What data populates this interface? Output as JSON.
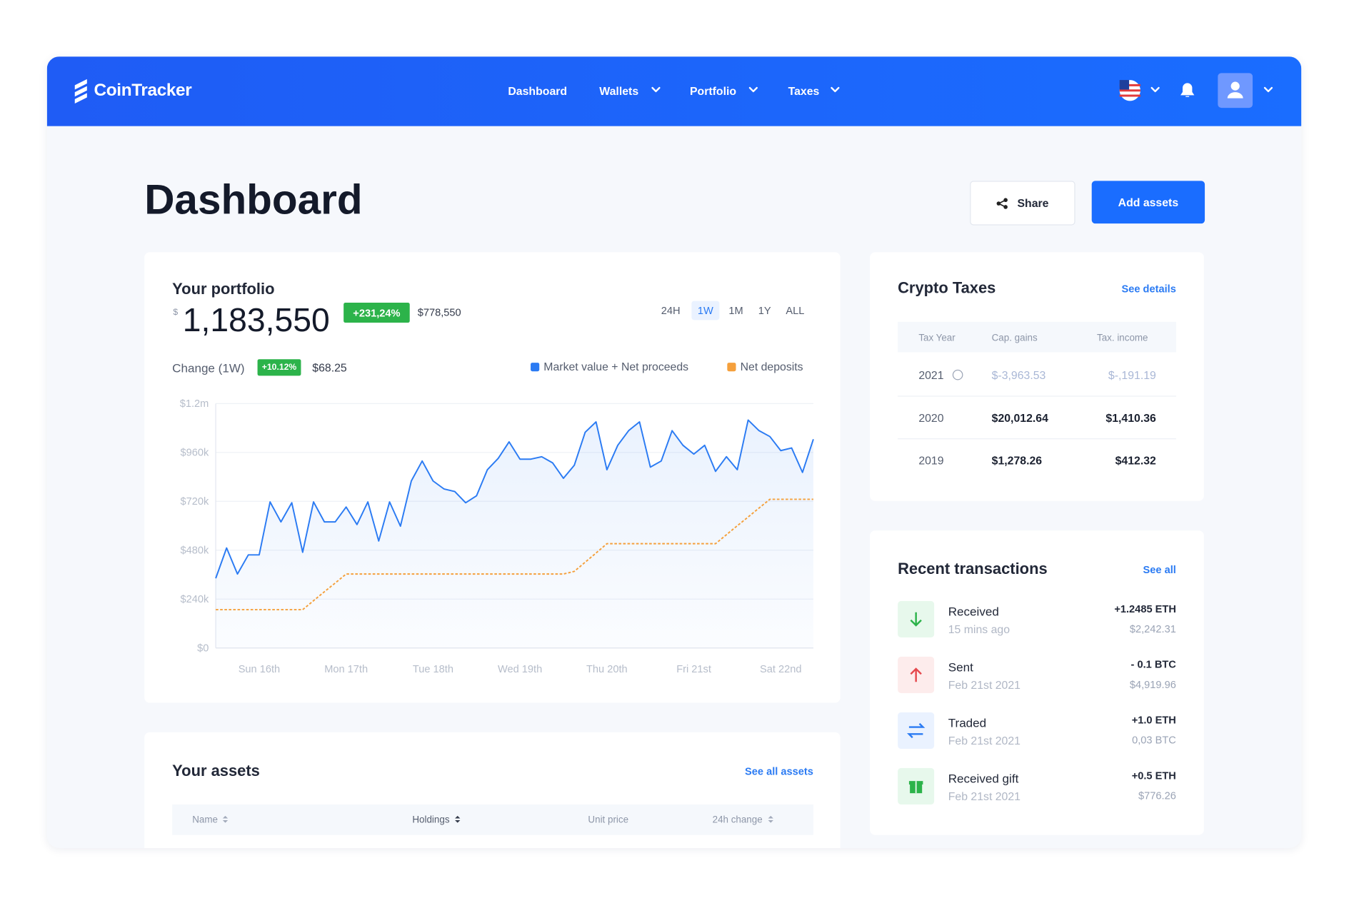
{
  "header": {
    "brand": "CoinTracker",
    "nav": [
      "Dashboard",
      "Wallets",
      "Portfolio",
      "Taxes"
    ]
  },
  "page": {
    "title": "Dashboard",
    "buttons": [
      "Share",
      "Add assets"
    ]
  },
  "portfolio": {
    "title": "Your portfolio",
    "currency": "$",
    "value": "1,183,550",
    "change_badge": "+231,24%",
    "previous_value": "$778,550",
    "ranges": [
      "24H",
      "1W",
      "1M",
      "1Y",
      "ALL"
    ],
    "selected_range": "1W",
    "period_change_label": "Change (1W)",
    "period_change_badge": "+10.12%",
    "period_change_value": "$68.25"
  },
  "chart_data": {
    "type": "line",
    "categories": [
      null,
      null,
      null,
      null,
      "Sun 16th",
      null,
      null,
      null,
      null,
      null,
      null,
      null,
      "Mon 17th",
      null,
      null,
      null,
      null,
      null,
      null,
      null,
      "Tue 18th",
      null,
      null,
      null,
      null,
      null,
      null,
      null,
      "Wed 19th",
      null,
      null,
      null,
      null,
      null,
      null,
      null,
      "Thu 20th",
      null,
      null,
      null,
      null,
      null,
      null,
      null,
      "Fri 21st",
      null,
      null,
      null,
      null,
      null,
      null,
      null,
      "Sat 22nd",
      null,
      null,
      null
    ],
    "series": [
      {
        "name": "Market value + Net proceeds",
        "color": "#2b7bf3",
        "style": "solid",
        "area": true,
        "values": [
          342000,
          491000,
          363000,
          457000,
          457000,
          717000,
          619000,
          713000,
          470000,
          717000,
          619000,
          619000,
          692000,
          606000,
          717000,
          525000,
          717000,
          598000,
          820000,
          918000,
          820000,
          781000,
          768000,
          713000,
          747000,
          875000,
          931000,
          1012000,
          927000,
          927000,
          939000,
          909000,
          833000,
          897000,
          1059000,
          1110000,
          875000,
          995000,
          1067000,
          1110000,
          888000,
          918000,
          1067000,
          995000,
          952000,
          995000,
          867000,
          939000,
          875000,
          1119000,
          1067000,
          1038000,
          969000,
          982000,
          862000,
          1025000
        ]
      },
      {
        "name": "Net deposits",
        "color": "#f5a03c",
        "style": "dashed",
        "area": false,
        "values": [
          188000,
          188000,
          188000,
          188000,
          188000,
          188000,
          188000,
          188000,
          188000,
          232000,
          276000,
          319000,
          363000,
          363000,
          363000,
          363000,
          363000,
          363000,
          363000,
          363000,
          363000,
          363000,
          363000,
          363000,
          363000,
          363000,
          363000,
          363000,
          363000,
          363000,
          363000,
          363000,
          363000,
          376000,
          421000,
          466000,
          512000,
          512000,
          512000,
          512000,
          512000,
          512000,
          512000,
          512000,
          512000,
          512000,
          512000,
          556000,
          600000,
          643000,
          687000,
          730000,
          730000,
          730000,
          730000,
          730000
        ]
      }
    ],
    "ylim": [
      0,
      1200000
    ],
    "yticks": [
      {
        "value": 0,
        "label": "$0"
      },
      {
        "value": 240000,
        "label": "$240k"
      },
      {
        "value": 480000,
        "label": "$480k"
      },
      {
        "value": 720000,
        "label": "$720k"
      },
      {
        "value": 960000,
        "label": "$960k"
      },
      {
        "value": 1200000,
        "label": "$1.2m"
      }
    ],
    "grid": true,
    "legend": "top-right"
  },
  "crypto_taxes": {
    "title": "Crypto Taxes",
    "link": "See details",
    "columns": [
      "Tax Year",
      "Cap. gains",
      "Tax. income"
    ],
    "rows": [
      [
        "2021",
        "$-3,963.53",
        "$-,191.19"
      ],
      [
        "2020",
        "$20,012.64",
        "$1,410.36"
      ],
      [
        "2019",
        "$1,278.26",
        "$412.32"
      ]
    ]
  },
  "transactions": {
    "title": "Recent transactions",
    "link": "See all",
    "items": [
      {
        "title": "Received",
        "time": "15 mins ago",
        "amount": "+1.2485 ETH",
        "value": "$2,242.31"
      },
      {
        "title": "Sent",
        "time": "Feb 21st 2021",
        "amount": "- 0.1 BTC",
        "value": "$4,919.96"
      },
      {
        "title": "Traded",
        "time": "Feb 21st 2021",
        "amount": "+1.0 ETH",
        "value": "0,03 BTC"
      },
      {
        "title": "Received gift",
        "time": "Feb 21st 2021",
        "amount": "+0.5 ETH",
        "value": "$776.26"
      }
    ]
  },
  "assets": {
    "title": "Your assets",
    "link": "See all assets",
    "columns": [
      "Name",
      "Holdings",
      "Unit price",
      "24h change"
    ]
  }
}
